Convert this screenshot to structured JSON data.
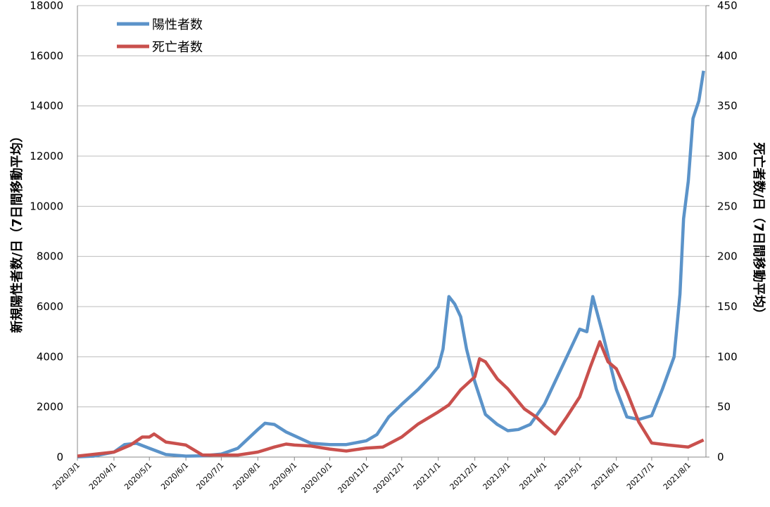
{
  "chart_data": {
    "type": "line",
    "ylabel": "新規陽性者数/日（7日間移動平均）",
    "y2label": "死亡者数/日（7日間移動平均）",
    "xlim": [
      "2020/3/1",
      "2021/8/16"
    ],
    "xticks": [
      "2020/3/1",
      "2020/4/1",
      "2020/5/1",
      "2020/6/1",
      "2020/7/1",
      "2020/8/1",
      "2020/9/1",
      "2020/10/1",
      "2020/11/1",
      "2020/12/1",
      "2021/1/1",
      "2021/2/1",
      "2021/3/1",
      "2021/4/1",
      "2021/5/1",
      "2021/6/1",
      "2021/7/1",
      "2021/8/1"
    ],
    "ylim": [
      0,
      18000
    ],
    "yticks": [
      0,
      2000,
      4000,
      6000,
      8000,
      10000,
      12000,
      14000,
      16000,
      18000
    ],
    "y2lim": [
      0,
      450
    ],
    "y2ticks": [
      0,
      50,
      100,
      150,
      200,
      250,
      300,
      350,
      400,
      450
    ],
    "grid": true,
    "legend": "upper left",
    "series": [
      {
        "name": "陽性者数",
        "color": "#5b93c9",
        "axis": "y",
        "x": [
          "2020/3/1",
          "2020/3/15",
          "2020/4/1",
          "2020/4/10",
          "2020/4/20",
          "2020/5/1",
          "2020/5/15",
          "2020/6/1",
          "2020/6/15",
          "2020/7/1",
          "2020/7/15",
          "2020/8/1",
          "2020/8/7",
          "2020/8/15",
          "2020/8/25",
          "2020/9/1",
          "2020/9/15",
          "2020/10/1",
          "2020/10/15",
          "2020/11/1",
          "2020/11/10",
          "2020/11/20",
          "2020/12/1",
          "2020/12/15",
          "2020/12/25",
          "2021/1/1",
          "2021/1/5",
          "2021/1/10",
          "2021/1/15",
          "2021/1/20",
          "2021/1/25",
          "2021/2/1",
          "2021/2/10",
          "2021/2/20",
          "2021/3/1",
          "2021/3/10",
          "2021/3/20",
          "2021/4/1",
          "2021/4/10",
          "2021/4/20",
          "2021/5/1",
          "2021/5/7",
          "2021/5/12",
          "2021/5/20",
          "2021/6/1",
          "2021/6/10",
          "2021/6/20",
          "2021/7/1",
          "2021/7/10",
          "2021/7/20",
          "2021/7/25",
          "2021/7/28",
          "2021/8/1",
          "2021/8/5",
          "2021/8/10",
          "2021/8/14"
        ],
        "values": [
          10,
          40,
          200,
          500,
          550,
          350,
          100,
          40,
          50,
          120,
          350,
          1100,
          1350,
          1300,
          1000,
          850,
          550,
          500,
          500,
          650,
          900,
          1600,
          2100,
          2700,
          3200,
          3600,
          4300,
          6400,
          6100,
          5600,
          4300,
          3000,
          1700,
          1300,
          1050,
          1100,
          1300,
          2100,
          3000,
          4000,
          5100,
          5000,
          6400,
          5000,
          2700,
          1600,
          1500,
          1650,
          2700,
          4000,
          6500,
          9500,
          11000,
          13500,
          14200,
          15400
        ]
      },
      {
        "name": "死亡者数",
        "color": "#c9504d",
        "axis": "y2",
        "x": [
          "2020/3/1",
          "2020/4/1",
          "2020/4/15",
          "2020/4/25",
          "2020/5/1",
          "2020/5/5",
          "2020/5/15",
          "2020/6/1",
          "2020/6/15",
          "2020/7/1",
          "2020/7/15",
          "2020/8/1",
          "2020/8/15",
          "2020/8/25",
          "2020/9/1",
          "2020/9/15",
          "2020/10/1",
          "2020/10/15",
          "2020/11/1",
          "2020/11/15",
          "2020/12/1",
          "2020/12/15",
          "2021/1/1",
          "2021/1/10",
          "2021/1/20",
          "2021/2/1",
          "2021/2/5",
          "2021/2/10",
          "2021/2/20",
          "2021/3/1",
          "2021/3/15",
          "2021/3/25",
          "2021/4/1",
          "2021/4/10",
          "2021/4/20",
          "2021/5/1",
          "2021/5/10",
          "2021/5/18",
          "2021/5/25",
          "2021/6/1",
          "2021/6/10",
          "2021/6/20",
          "2021/7/1",
          "2021/7/15",
          "2021/8/1",
          "2021/8/14"
        ],
        "values": [
          1,
          5,
          12,
          20,
          20,
          23,
          15,
          12,
          2,
          2,
          2,
          5,
          10,
          13,
          12,
          11,
          8,
          6,
          9,
          10,
          20,
          33,
          45,
          52,
          67,
          80,
          98,
          95,
          78,
          68,
          48,
          40,
          32,
          23,
          40,
          60,
          90,
          115,
          95,
          88,
          65,
          35,
          14,
          12,
          10,
          17
        ]
      }
    ]
  }
}
